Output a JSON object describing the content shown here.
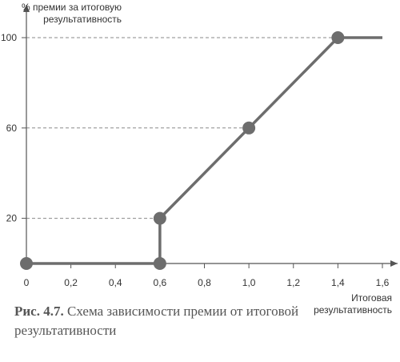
{
  "chart_data": {
    "type": "line",
    "ylabel": "% премии за итоговую результативность",
    "ylabel_lines": [
      "% премии за итоговую",
      "результативность"
    ],
    "xlabel": "Итоговая результативность",
    "xlabel_lines": [
      "Итоговая",
      "результативность"
    ],
    "x_ticks": [
      "0",
      "0,2",
      "0,4",
      "0,6",
      "0,8",
      "1,0",
      "1,2",
      "1,4",
      "1,6"
    ],
    "x_tick_values": [
      0,
      0.2,
      0.4,
      0.6,
      0.8,
      1.0,
      1.2,
      1.4,
      1.6
    ],
    "y_ticks": [
      "20",
      "60",
      "100"
    ],
    "y_tick_values": [
      20,
      60,
      100
    ],
    "xlim": [
      0,
      1.6
    ],
    "ylim": [
      0,
      100
    ],
    "series": [
      {
        "x": [
          0,
          0.6,
          0.6,
          1.0,
          1.4,
          1.6
        ],
        "y": [
          0,
          0,
          20,
          60,
          100,
          100
        ]
      }
    ],
    "markers": [
      {
        "x": 0,
        "y": 0
      },
      {
        "x": 0.6,
        "y": 0
      },
      {
        "x": 0.6,
        "y": 20
      },
      {
        "x": 1.0,
        "y": 60
      },
      {
        "x": 1.4,
        "y": 100
      }
    ],
    "grid": "dashed guides at y ticks",
    "colors": {
      "line": "#6d6d6d",
      "axis": "#555555",
      "guide": "#8a8a8a"
    }
  },
  "caption": {
    "label": "Рис. 4.7.",
    "text": " Схема зависимости премии от итоговой результативности"
  }
}
